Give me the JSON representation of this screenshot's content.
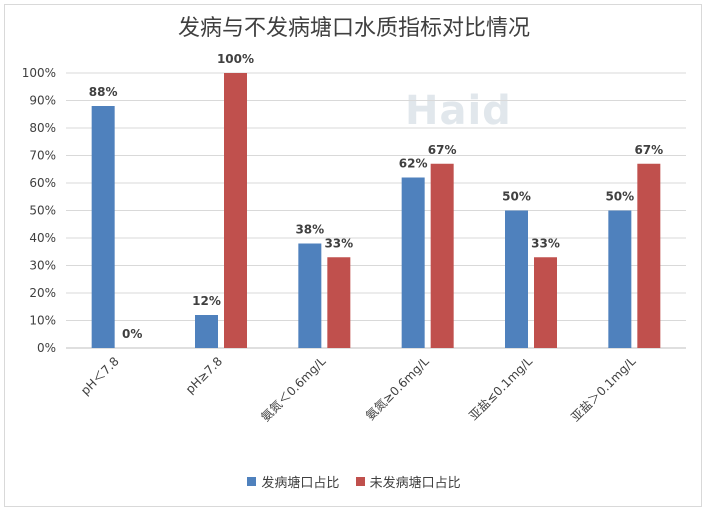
{
  "chart_data": {
    "type": "bar",
    "title": "发病与不发病塘口水质指标对比情况",
    "categories": [
      "pH＜7.8",
      "pH≥7.8",
      "氨氮＜0.6mg/L",
      "氨氮≥0.6mg/L",
      "亚盐≤0.1mg/L",
      "亚盐＞0.1mg/L"
    ],
    "series": [
      {
        "name": "发病塘口占比",
        "values": [
          88,
          12,
          38,
          62,
          50,
          50
        ],
        "labels": [
          "88%",
          "12%",
          "38%",
          "62%",
          "50%",
          "50%"
        ],
        "color": "#4F81BD"
      },
      {
        "name": "未发病塘口占比",
        "values": [
          0,
          100,
          33,
          67,
          33,
          67
        ],
        "labels": [
          "0%",
          "100%",
          "33%",
          "67%",
          "33%",
          "67%"
        ],
        "color": "#C0504D"
      }
    ],
    "ylim": [
      0,
      100
    ],
    "yticks": [
      "0%",
      "10%",
      "20%",
      "30%",
      "40%",
      "50%",
      "60%",
      "70%",
      "80%",
      "90%",
      "100%"
    ],
    "grid": true,
    "legend_position": "bottom"
  },
  "watermark": {
    "text": "Haid"
  }
}
